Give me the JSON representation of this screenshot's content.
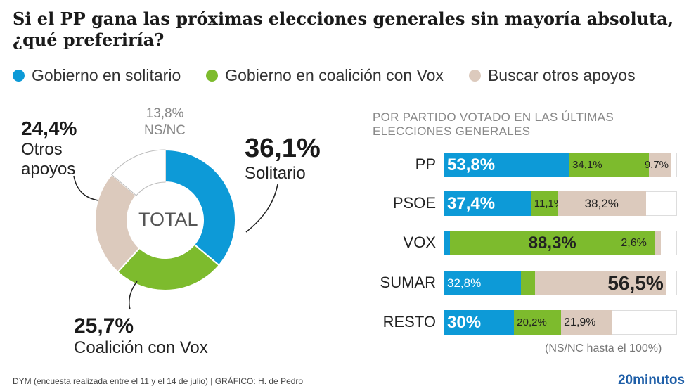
{
  "title": "Si el PP gana las próximas elecciones generales sin mayoría absoluta, ¿qué preferiría?",
  "legend": [
    {
      "label": "Gobierno en solitario",
      "color": "#0d9ad7"
    },
    {
      "label": "Gobierno en coalición con Vox",
      "color": "#7dbb2d"
    },
    {
      "label": "Buscar otros apoyos",
      "color": "#dccabd"
    }
  ],
  "chart_data": [
    {
      "type": "pie",
      "subtype": "donut",
      "center_label": "TOTAL",
      "slices": [
        {
          "label": "Solitario",
          "value": 36.1,
          "text": "36,1%",
          "color": "#0d9ad7"
        },
        {
          "label": "Coalición con Vox",
          "value": 25.7,
          "text": "25,7%",
          "color": "#7dbb2d"
        },
        {
          "label": "Otros apoyos",
          "value": 24.4,
          "text": "24,4%",
          "color": "#dccabd"
        },
        {
          "label": "NS/NC",
          "value": 13.8,
          "text": "13,8%",
          "color": "#ffffff"
        }
      ]
    },
    {
      "type": "bar",
      "orientation": "horizontal",
      "stacked": true,
      "title": "POR PARTIDO VOTADO EN LAS ÚLTIMAS ELECCIONES GENERALES",
      "note": "(NS/NC hasta el 100%)",
      "categories": [
        "PP",
        "PSOE",
        "VOX",
        "SUMAR",
        "RESTO"
      ],
      "series": [
        {
          "name": "Gobierno en solitario",
          "values": [
            53.8,
            37.4,
            2.3,
            32.8,
            30
          ],
          "labels": [
            "53,8%",
            "37,4%",
            "2,3%",
            "32,8%",
            "30%"
          ]
        },
        {
          "name": "Gobierno en coalición con Vox",
          "values": [
            34.1,
            11.1,
            88.3,
            6.1,
            20.2
          ],
          "labels": [
            "34,1%",
            "11,1%",
            "88,3%",
            "6,1%",
            "20,2%"
          ]
        },
        {
          "name": "Buscar otros apoyos",
          "values": [
            9.7,
            38.2,
            2.6,
            56.5,
            21.9
          ],
          "labels": [
            "9,7%",
            "38,2%",
            "2,6%",
            "56,5%",
            "21,9%"
          ]
        }
      ],
      "xlim": [
        0,
        100
      ]
    }
  ],
  "footer": {
    "source": "DYM (encuesta realizada entre el 11 y el 14 de julio)  |  GRÁFICO: H. de Pedro",
    "brand": "20minutos"
  }
}
